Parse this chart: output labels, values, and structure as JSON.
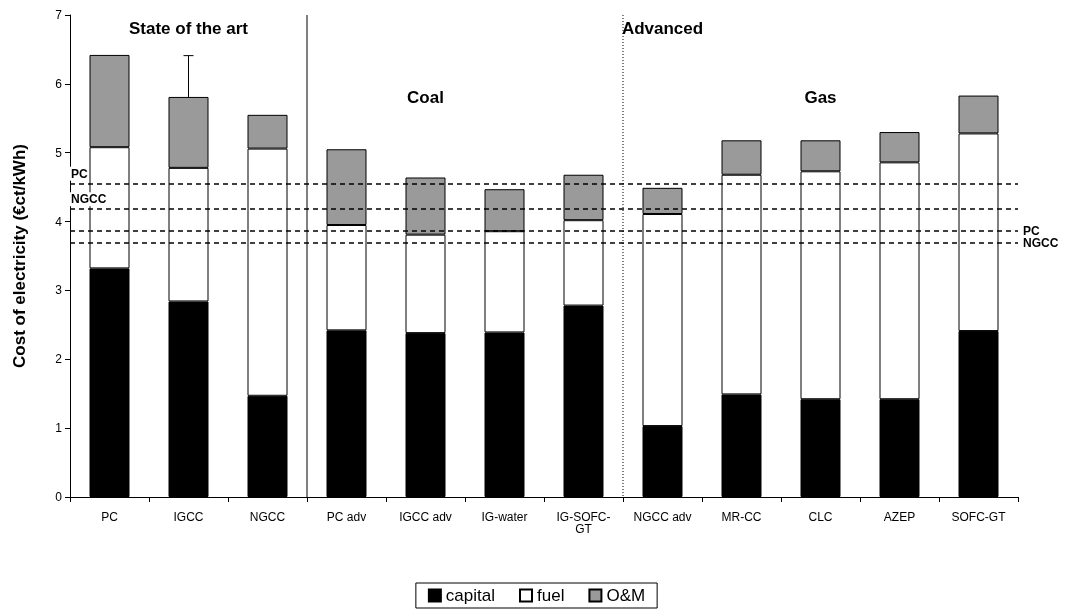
{
  "chart_data": {
    "type": "bar",
    "stacked": true,
    "ylabel": "Cost of electricity (€ct/kWh)",
    "categories": [
      "PC",
      "IGCC",
      "NGCC",
      "PC adv",
      "IGCC adv",
      "IG-water",
      "IG-SOFC-GT",
      "NGCC adv",
      "MR-CC",
      "CLC",
      "AZEP",
      "SOFC-GT"
    ],
    "series": [
      {
        "name": "capital",
        "color": "#000000",
        "values": [
          3.32,
          2.84,
          1.47,
          2.42,
          2.38,
          2.39,
          2.78,
          1.03,
          1.49,
          1.42,
          1.42,
          2.41
        ]
      },
      {
        "name": "fuel",
        "color": "#ffffff",
        "values": [
          1.76,
          1.94,
          3.59,
          1.53,
          1.43,
          1.47,
          1.24,
          3.08,
          3.19,
          3.31,
          3.44,
          2.87
        ]
      },
      {
        "name": "O&M",
        "color": "#9a9a9a",
        "values": [
          1.34,
          1.03,
          0.49,
          1.1,
          0.83,
          0.61,
          0.66,
          0.38,
          0.5,
          0.45,
          0.44,
          0.55
        ],
        "errors": [
          null,
          [
            5.81,
            6.41
          ],
          null,
          null,
          null,
          null,
          null,
          null,
          null,
          null,
          null,
          null
        ]
      }
    ],
    "ylim": [
      0,
      7
    ],
    "yticks": [
      0,
      1,
      2,
      3,
      4,
      5,
      6,
      7
    ],
    "grid": false,
    "legend": "bottom",
    "ref_lines": [
      {
        "axis": "y",
        "value": 4.55,
        "label": "PC",
        "line_style": "dashed"
      },
      {
        "axis": "y",
        "value": 4.18,
        "label": "NGCC",
        "line_style": "dashed"
      },
      {
        "axis": "y",
        "value": 3.86,
        "label": "PC",
        "line_style": "dashed"
      },
      {
        "axis": "y",
        "value": 3.69,
        "label": "NGCC",
        "line_style": "dashed"
      },
      {
        "axis": "x",
        "value": "PC adv",
        "line_style": "solid"
      },
      {
        "axis": "x",
        "value": "NGCC adv",
        "line_style": "dotted"
      }
    ],
    "annotations": [
      "State of the art",
      "Advanced",
      "Coal",
      "Gas"
    ]
  }
}
